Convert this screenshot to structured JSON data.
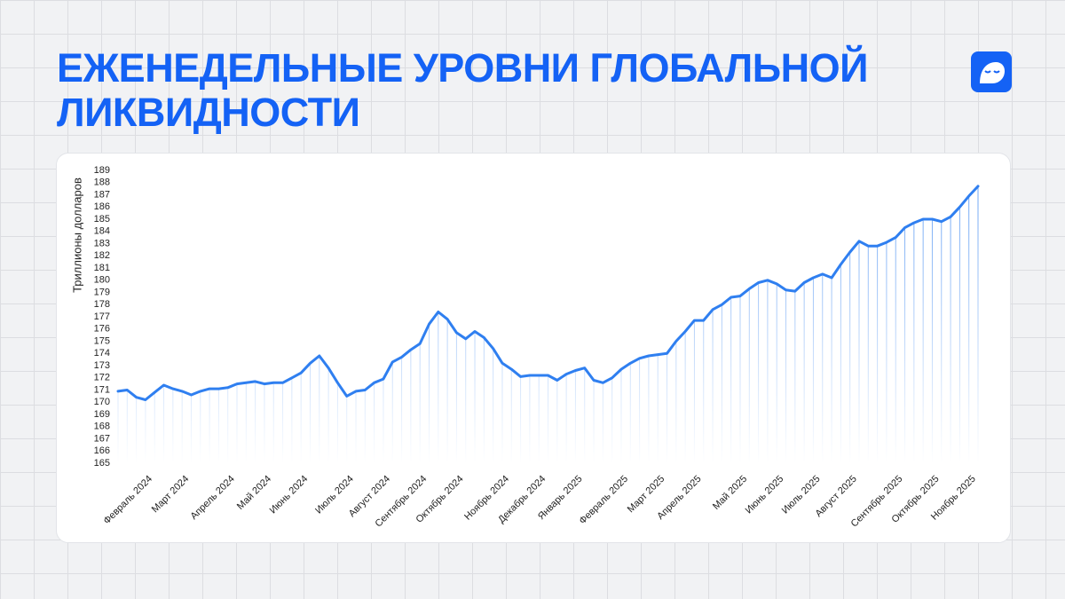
{
  "chart_data": {
    "type": "line",
    "title": [
      "ЕЖЕНЕДЕЛЬНЫЕ УРОВНИ ГЛОБАЛЬНОЙ",
      "ЛИКВИДНОСТИ"
    ],
    "y_label": "Триллионы долларов",
    "color": "#2f7ff0",
    "ylim": [
      165,
      189
    ],
    "yticks": [
      165,
      166,
      167,
      168,
      169,
      170,
      171,
      172,
      173,
      174,
      175,
      176,
      177,
      178,
      179,
      180,
      181,
      182,
      183,
      184,
      185,
      186,
      187,
      188,
      189
    ],
    "categories": [
      null,
      null,
      null,
      "Февраль 2024",
      null,
      null,
      null,
      "Март 2024",
      null,
      null,
      null,
      null,
      "Апрель 2024",
      null,
      null,
      null,
      "Май 2024",
      null,
      null,
      null,
      "Июнь 2024",
      null,
      null,
      null,
      null,
      "Июль 2024",
      null,
      null,
      null,
      "Август 2024",
      null,
      null,
      null,
      "Сентябрь 2024",
      null,
      null,
      null,
      "Октябрь 2024",
      null,
      null,
      null,
      null,
      "Ноябрь 2024",
      null,
      null,
      null,
      "Декабрь 2024",
      null,
      null,
      null,
      "Январь 2025",
      null,
      null,
      null,
      null,
      "Февраль 2025",
      null,
      null,
      null,
      "Март 2025",
      null,
      null,
      null,
      "Апрель 2025",
      null,
      null,
      null,
      null,
      "Май 2025",
      null,
      null,
      null,
      "Июнь 2025",
      null,
      null,
      null,
      "Июль 2025",
      null,
      null,
      null,
      "Август 2025",
      null,
      null,
      null,
      null,
      "Сентябрь 2025",
      null,
      null,
      null,
      "Октябрь 2025",
      null,
      null,
      null,
      "Ноябрь 2025",
      null
    ],
    "values": [
      170.9,
      171.0,
      170.4,
      170.2,
      170.8,
      171.4,
      171.1,
      170.9,
      170.6,
      170.9,
      171.1,
      171.1,
      171.2,
      171.5,
      171.6,
      171.7,
      171.5,
      171.6,
      171.6,
      172.0,
      172.4,
      173.2,
      173.8,
      172.8,
      171.6,
      170.5,
      170.9,
      171.0,
      171.6,
      171.9,
      173.3,
      173.7,
      174.3,
      174.8,
      176.4,
      177.4,
      176.8,
      175.7,
      175.2,
      175.8,
      175.3,
      174.4,
      173.2,
      172.7,
      172.1,
      172.2,
      172.2,
      172.2,
      171.8,
      172.3,
      172.6,
      172.8,
      171.8,
      171.6,
      172.0,
      172.7,
      173.2,
      173.6,
      173.8,
      173.9,
      174.0,
      175.0,
      175.8,
      176.7,
      176.7,
      177.6,
      178.0,
      178.6,
      178.7,
      179.3,
      179.8,
      180.0,
      179.7,
      179.2,
      179.1,
      179.8,
      180.2,
      180.5,
      180.2,
      181.3,
      182.3,
      183.2,
      182.8,
      182.8,
      183.1,
      183.5,
      184.3,
      184.7,
      185.0,
      185.0,
      184.8,
      185.2,
      186.0,
      186.9,
      187.7
    ]
  }
}
